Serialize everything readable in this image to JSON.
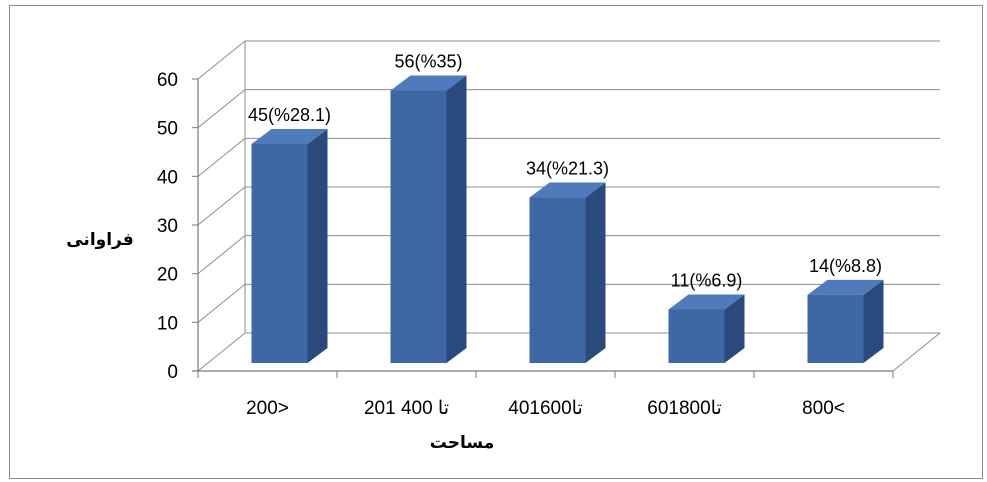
{
  "chart_data": {
    "type": "bar",
    "title": "",
    "xlabel": "مساحت",
    "ylabel": "فراوانی",
    "ylim": [
      0,
      60
    ],
    "yticks": [
      0,
      10,
      20,
      30,
      40,
      50,
      60
    ],
    "grid": true,
    "three_d": true,
    "categories": [
      "200>",
      "201 تا 400",
      "401تا600",
      "601تا800",
      "800<"
    ],
    "values": [
      45,
      56,
      34,
      11,
      14
    ],
    "data_labels": [
      "45(%28.1)",
      "56(%35)",
      "34(%21.3)",
      "11(%6.9)",
      "14(%8.8)"
    ],
    "colors": {
      "bar_front": "#3f67a3",
      "bar_top": "#4f7bbd",
      "bar_side": "#2a4a7d",
      "grid": "#8c8c8c"
    }
  }
}
